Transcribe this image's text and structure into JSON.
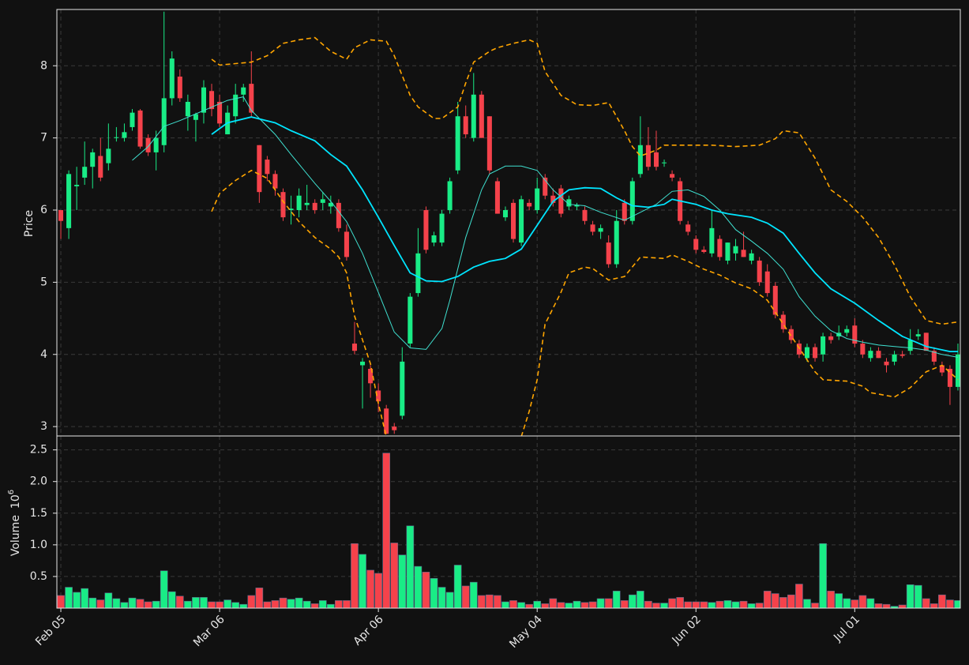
{
  "chart_data": [
    {
      "type": "candlestick",
      "ylabel": "Price",
      "grid": true,
      "up_color": "#19ec86",
      "down_color": "#f5424b",
      "xlim": [
        -0.5,
        113.3
      ],
      "ylim": [
        2.87,
        8.78
      ],
      "yticks": [
        3,
        4,
        5,
        6,
        7,
        8
      ],
      "open": [
        6.0,
        5.75,
        6.33,
        6.45,
        6.6,
        6.75,
        6.65,
        7.0,
        7.0,
        7.15,
        7.38,
        7.0,
        6.8,
        6.9,
        7.55,
        7.85,
        7.3,
        7.25,
        7.35,
        7.65,
        7.5,
        7.05,
        7.3,
        7.6,
        7.75,
        6.9,
        6.7,
        6.5,
        6.25,
        6.0,
        6.0,
        6.07,
        6.1,
        6.1,
        6.05,
        6.1,
        5.7,
        4.15,
        3.85,
        3.8,
        3.5,
        3.25,
        3.0,
        3.15,
        4.15,
        4.85,
        6.0,
        5.55,
        5.55,
        6.0,
        6.55,
        7.3,
        7.0,
        7.6,
        7.3,
        6.4,
        5.9,
        6.1,
        5.55,
        6.1,
        6.0,
        6.45,
        6.2,
        6.3,
        6.05,
        6.05,
        6.0,
        5.8,
        5.7,
        5.55,
        5.25,
        6.1,
        5.85,
        6.5,
        6.9,
        6.8,
        6.65,
        6.5,
        6.4,
        5.8,
        5.6,
        5.45,
        5.4,
        5.6,
        5.3,
        5.4,
        5.45,
        5.3,
        5.3,
        5.15,
        4.95,
        4.55,
        4.35,
        4.15,
        3.95,
        4.1,
        4.0,
        4.25,
        4.25,
        4.3,
        4.4,
        4.15,
        3.95,
        4.05,
        3.9,
        3.9,
        4.0,
        4.05,
        4.25,
        4.3,
        4.05,
        3.85,
        3.8,
        3.55
      ],
      "high": [
        6.0,
        6.55,
        6.6,
        6.95,
        6.85,
        7.0,
        7.2,
        7.15,
        7.2,
        7.4,
        7.4,
        7.05,
        7.1,
        8.75,
        8.2,
        7.95,
        7.6,
        7.35,
        7.8,
        7.75,
        7.6,
        7.45,
        7.75,
        7.75,
        8.2,
        6.9,
        6.75,
        6.55,
        6.3,
        6.2,
        6.3,
        6.35,
        6.15,
        6.25,
        6.2,
        6.15,
        5.8,
        4.45,
        3.95,
        3.85,
        3.6,
        3.3,
        3.05,
        4.1,
        4.85,
        5.75,
        6.05,
        5.7,
        6.0,
        6.45,
        7.5,
        7.45,
        7.9,
        7.65,
        7.3,
        6.45,
        6.05,
        6.15,
        6.2,
        6.15,
        6.45,
        6.5,
        6.3,
        6.35,
        6.2,
        6.1,
        6.05,
        5.85,
        5.8,
        5.65,
        6.0,
        6.15,
        6.45,
        7.3,
        7.15,
        7.1,
        6.7,
        6.55,
        6.45,
        5.85,
        5.65,
        5.5,
        6.0,
        5.65,
        5.55,
        5.6,
        5.7,
        5.45,
        5.35,
        5.25,
        5.0,
        4.6,
        4.4,
        4.2,
        4.15,
        4.15,
        4.3,
        4.3,
        4.4,
        4.4,
        4.5,
        4.2,
        4.1,
        4.1,
        3.95,
        4.05,
        4.05,
        4.35,
        4.35,
        4.3,
        4.1,
        3.9,
        3.85,
        4.15
      ],
      "low": [
        5.6,
        5.6,
        6.0,
        6.35,
        6.3,
        6.4,
        6.55,
        6.95,
        6.95,
        7.1,
        6.85,
        6.75,
        6.55,
        6.8,
        7.45,
        7.5,
        7.1,
        6.95,
        7.2,
        7.3,
        7.15,
        7.05,
        7.2,
        7.5,
        7.3,
        6.1,
        6.4,
        6.2,
        5.85,
        5.8,
        5.9,
        6.0,
        5.95,
        6.0,
        5.95,
        5.7,
        5.3,
        4.0,
        3.25,
        3.4,
        3.2,
        2.9,
        2.9,
        3.1,
        4.1,
        4.8,
        5.4,
        5.5,
        5.5,
        5.95,
        6.5,
        7.0,
        6.95,
        7.0,
        6.5,
        5.95,
        5.85,
        5.55,
        5.5,
        6.0,
        5.95,
        6.15,
        6.05,
        5.9,
        6.0,
        6.0,
        5.8,
        5.65,
        5.6,
        5.2,
        5.2,
        5.8,
        5.8,
        6.45,
        6.55,
        6.55,
        6.6,
        6.4,
        5.8,
        5.65,
        5.4,
        5.4,
        5.35,
        5.3,
        5.25,
        5.3,
        5.35,
        5.25,
        4.95,
        4.8,
        4.5,
        4.3,
        4.15,
        3.95,
        3.9,
        3.9,
        3.9,
        4.15,
        4.2,
        4.25,
        4.1,
        3.95,
        3.9,
        3.95,
        3.75,
        3.85,
        3.95,
        4.0,
        4.2,
        4.05,
        3.85,
        3.7,
        3.3,
        3.5
      ],
      "close": [
        5.85,
        6.5,
        6.35,
        6.6,
        6.8,
        6.45,
        6.85,
        7.01,
        7.08,
        7.35,
        6.88,
        6.8,
        7.0,
        7.55,
        8.1,
        7.55,
        7.5,
        7.33,
        7.7,
        7.4,
        7.2,
        7.35,
        7.6,
        7.7,
        7.35,
        6.25,
        6.5,
        6.3,
        5.9,
        6.02,
        6.2,
        6.1,
        6.0,
        6.15,
        6.1,
        5.75,
        5.35,
        4.05,
        3.9,
        3.6,
        3.35,
        2.9,
        2.95,
        3.9,
        4.8,
        5.4,
        5.45,
        5.65,
        5.95,
        6.4,
        7.3,
        7.05,
        7.6,
        7.0,
        6.55,
        5.95,
        6.0,
        5.6,
        6.15,
        6.05,
        6.3,
        6.2,
        6.1,
        5.95,
        6.15,
        6.07,
        5.85,
        5.7,
        5.75,
        5.25,
        5.85,
        5.85,
        6.4,
        6.9,
        6.6,
        6.6,
        6.66,
        6.45,
        5.85,
        5.7,
        5.45,
        5.42,
        5.75,
        5.35,
        5.55,
        5.5,
        5.35,
        5.4,
        5.0,
        4.85,
        4.55,
        4.35,
        4.2,
        4.0,
        4.1,
        3.95,
        4.25,
        4.2,
        4.3,
        4.35,
        4.15,
        4.0,
        4.05,
        3.95,
        3.85,
        4.0,
        3.98,
        4.2,
        4.28,
        4.05,
        3.9,
        3.75,
        3.55,
        4.0
      ],
      "series": [
        {
          "color": "#3fe0d0",
          "x": [
            9,
            11,
            13,
            15,
            18,
            21,
            23,
            24,
            27,
            29,
            32,
            34,
            36,
            38,
            40,
            42,
            44,
            46,
            48,
            49,
            51,
            53,
            54,
            56,
            58,
            60,
            62,
            64,
            66,
            68,
            71,
            73,
            75,
            77,
            79,
            81,
            83,
            85,
            87,
            89,
            91,
            93,
            95,
            97,
            99,
            101,
            103,
            105,
            107,
            109,
            111,
            113
          ],
          "values": [
            6.69,
            6.88,
            7.16,
            7.24,
            7.38,
            7.52,
            7.57,
            7.38,
            7.05,
            6.77,
            6.37,
            6.12,
            5.84,
            5.4,
            4.86,
            4.31,
            4.09,
            4.07,
            4.36,
            4.75,
            5.62,
            6.28,
            6.5,
            6.61,
            6.61,
            6.55,
            6.28,
            6.08,
            6.06,
            5.97,
            5.86,
            5.97,
            6.08,
            6.26,
            6.28,
            6.19,
            6.0,
            5.73,
            5.57,
            5.4,
            5.18,
            4.8,
            4.53,
            4.33,
            4.22,
            4.17,
            4.13,
            4.11,
            4.09,
            4.06,
            4.0,
            3.96
          ]
        },
        {
          "color": "#00e5ff",
          "x": [
            19,
            21,
            24,
            27,
            29,
            32,
            34,
            36,
            38,
            40,
            42,
            44,
            46,
            48,
            50,
            52,
            54,
            56,
            58,
            60,
            62,
            64,
            66,
            68,
            70,
            72,
            74,
            76,
            77,
            80,
            82,
            84,
            87,
            89,
            91,
            93,
            95,
            97,
            100,
            103,
            106,
            109,
            112,
            113
          ],
          "values": [
            7.05,
            7.21,
            7.29,
            7.21,
            7.1,
            6.96,
            6.77,
            6.61,
            6.28,
            5.9,
            5.51,
            5.13,
            5.02,
            5.01,
            5.08,
            5.21,
            5.29,
            5.33,
            5.46,
            5.79,
            6.12,
            6.28,
            6.31,
            6.3,
            6.17,
            6.06,
            6.04,
            6.08,
            6.15,
            6.08,
            6.0,
            5.95,
            5.9,
            5.82,
            5.68,
            5.4,
            5.13,
            4.91,
            4.71,
            4.47,
            4.25,
            4.11,
            4.04,
            4.04
          ]
        },
        {
          "color": "#ffa500",
          "dashed": true,
          "x": [
            19,
            20,
            22,
            24,
            26,
            28,
            30,
            32,
            34,
            36,
            37,
            39,
            41,
            42,
            44,
            45,
            47,
            48,
            50,
            51,
            52,
            54,
            55,
            57,
            59,
            60,
            61,
            63,
            65,
            67,
            69,
            71,
            72,
            73,
            75,
            76,
            79,
            82,
            85,
            88,
            90,
            91,
            93,
            95,
            97,
            99,
            101,
            103,
            105,
            107,
            109,
            111,
            113
          ],
          "values": [
            8.09,
            8.01,
            8.03,
            8.05,
            8.14,
            8.31,
            8.36,
            8.39,
            8.2,
            8.09,
            8.25,
            8.36,
            8.34,
            8.14,
            7.59,
            7.43,
            7.27,
            7.27,
            7.43,
            7.76,
            8.05,
            8.2,
            8.25,
            8.31,
            8.36,
            8.31,
            7.92,
            7.59,
            7.46,
            7.45,
            7.49,
            7.1,
            6.88,
            6.75,
            6.83,
            6.9,
            6.9,
            6.9,
            6.88,
            6.9,
            6.99,
            7.1,
            7.07,
            6.72,
            6.28,
            6.12,
            5.9,
            5.62,
            5.24,
            4.8,
            4.47,
            4.42,
            4.45
          ]
        },
        {
          "color": "#ffa500",
          "dashed": true,
          "x": [
            19,
            20,
            22,
            24,
            26,
            28,
            30,
            32,
            34,
            35,
            36,
            37,
            39,
            40,
            41,
            50,
            58,
            59,
            60,
            61,
            63,
            64,
            66,
            67,
            69,
            71,
            73,
            76,
            77,
            79,
            81,
            83,
            85,
            87,
            89,
            91,
            93,
            95,
            96,
            99,
            101,
            102,
            104,
            105,
            107,
            109,
            111,
            113
          ],
          "values": [
            5.98,
            6.23,
            6.41,
            6.55,
            6.44,
            6.12,
            5.84,
            5.62,
            5.46,
            5.35,
            5.13,
            4.53,
            3.87,
            3.32,
            2.86,
            null,
            2.86,
            3.21,
            3.65,
            4.42,
            4.86,
            5.13,
            5.21,
            5.19,
            5.03,
            5.08,
            5.35,
            5.33,
            5.38,
            5.29,
            5.18,
            5.1,
            4.99,
            4.91,
            4.75,
            4.42,
            4.09,
            3.76,
            3.65,
            3.63,
            3.56,
            3.47,
            3.43,
            3.41,
            3.54,
            3.76,
            3.85,
            3.65
          ]
        }
      ]
    },
    {
      "type": "bar",
      "ylabel": "Volume",
      "scale_base": "10",
      "scale_exponent": "6",
      "grid": true,
      "xlim": [
        -0.5,
        113.3
      ],
      "ylim": [
        0,
        2.72
      ],
      "yticks": [
        0.5,
        {
          "value": 1,
          "label": "1.0"
        },
        1.5,
        {
          "value": 2,
          "label": "2.0"
        },
        2.5
      ],
      "xticks": [
        {
          "value": 0,
          "label": "Feb 05"
        },
        {
          "value": 20,
          "label": "Mar 06"
        },
        {
          "value": 40,
          "label": "Apr 06"
        },
        {
          "value": 60,
          "label": "May 04"
        },
        {
          "value": 80,
          "label": "Jun 02"
        },
        {
          "value": 100,
          "label": "Jul 01"
        }
      ],
      "values": [
        0.2,
        0.33,
        0.25,
        0.31,
        0.16,
        0.13,
        0.24,
        0.15,
        0.09,
        0.16,
        0.14,
        0.1,
        0.11,
        0.59,
        0.26,
        0.19,
        0.11,
        0.17,
        0.17,
        0.1,
        0.1,
        0.13,
        0.09,
        0.06,
        0.2,
        0.32,
        0.1,
        0.12,
        0.16,
        0.14,
        0.16,
        0.11,
        0.07,
        0.12,
        0.06,
        0.12,
        0.12,
        1.02,
        0.85,
        0.6,
        0.55,
        2.45,
        1.03,
        0.84,
        1.3,
        0.66,
        0.57,
        0.47,
        0.33,
        0.25,
        0.68,
        0.35,
        0.41,
        0.2,
        0.21,
        0.2,
        0.1,
        0.12,
        0.09,
        0.06,
        0.11,
        0.07,
        0.15,
        0.09,
        0.08,
        0.11,
        0.09,
        0.1,
        0.15,
        0.15,
        0.27,
        0.12,
        0.21,
        0.27,
        0.11,
        0.08,
        0.08,
        0.15,
        0.17,
        0.1,
        0.1,
        0.1,
        0.09,
        0.11,
        0.12,
        0.1,
        0.11,
        0.07,
        0.08,
        0.27,
        0.23,
        0.17,
        0.21,
        0.38,
        0.14,
        0.08,
        1.02,
        0.27,
        0.23,
        0.15,
        0.13,
        0.2,
        0.15,
        0.07,
        0.06,
        0.03,
        0.05,
        0.37,
        0.36,
        0.15,
        0.07,
        0.21,
        0.13,
        0.12
      ]
    }
  ]
}
